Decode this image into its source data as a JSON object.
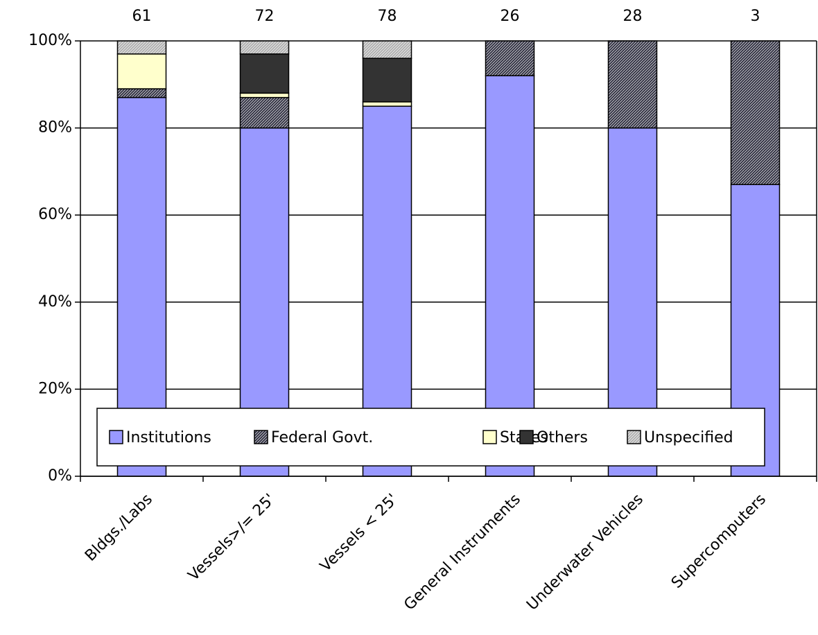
{
  "chart_data": {
    "type": "stacked_bar_percent",
    "categories": [
      "Bldgs./Labs",
      "Vessels>/= 25'",
      "Vessels < 25'",
      "General Instruments",
      "Underwater Vehicles",
      "Supercomputers"
    ],
    "totals": [
      61,
      72,
      78,
      26,
      28,
      3
    ],
    "series": [
      {
        "name": "Institutions",
        "color": "#9999ff",
        "hatch": false,
        "values": [
          87,
          80,
          85,
          92,
          80,
          67
        ]
      },
      {
        "name": "Federal Govt.",
        "color": "#333344",
        "hatch": true,
        "values": [
          2,
          7,
          0,
          8,
          20,
          33
        ]
      },
      {
        "name": "States",
        "color": "#ffffcc",
        "hatch": false,
        "values": [
          8,
          1,
          1,
          0,
          0,
          0
        ]
      },
      {
        "name": "Others",
        "color": "#333333",
        "hatch": false,
        "values": [
          0,
          9,
          10,
          0,
          0,
          0
        ]
      },
      {
        "name": "Unspecified",
        "color": "#b0b0b0",
        "hatch": true,
        "values": [
          3,
          3,
          4,
          0,
          0,
          0
        ]
      }
    ],
    "ylim": [
      0,
      100
    ],
    "yticks": [
      {
        "value": 0,
        "label": "0%"
      },
      {
        "value": 20,
        "label": "20%"
      },
      {
        "value": 40,
        "label": "40%"
      },
      {
        "value": 60,
        "label": "60%"
      },
      {
        "value": 80,
        "label": "80%"
      },
      {
        "value": 100,
        "label": "100%"
      }
    ],
    "grid": true
  }
}
